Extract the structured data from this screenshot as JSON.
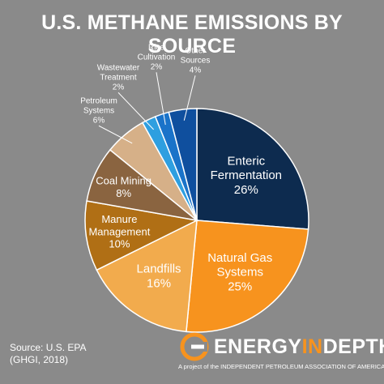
{
  "title": "U.S. METHANE EMISSIONS BY SOURCE",
  "chart_data": {
    "type": "pie",
    "title": "U.S. METHANE EMISSIONS BY SOURCE",
    "slices": [
      {
        "name": "Enteric Fermentation",
        "label_lines": [
          "Enteric",
          "Fermentation"
        ],
        "value": 26,
        "value_label": "26%",
        "color": "#0d2b4f"
      },
      {
        "name": "Natural Gas Systems",
        "label_lines": [
          "Natural Gas",
          "Systems"
        ],
        "value": 25,
        "value_label": "25%",
        "color": "#f7931e"
      },
      {
        "name": "Landfills",
        "label_lines": [
          "Landfills"
        ],
        "value": 16,
        "value_label": "16%",
        "color": "#f2ab4d"
      },
      {
        "name": "Manure Management",
        "label_lines": [
          "Manure",
          "Management"
        ],
        "value": 10,
        "value_label": "10%",
        "color": "#b06f15"
      },
      {
        "name": "Coal Mining",
        "label_lines": [
          "Coal Mining"
        ],
        "value": 8,
        "value_label": "8%",
        "color": "#8a6440"
      },
      {
        "name": "Petroleum Systems",
        "label_lines": [
          "Petroleum",
          "Systems"
        ],
        "value": 6,
        "value_label": "6%",
        "color": "#d6b088"
      },
      {
        "name": "Wastewater Treatment",
        "label_lines": [
          "Wastewater",
          "Treatment"
        ],
        "value": 2,
        "value_label": "2%",
        "color": "#2e9fe0"
      },
      {
        "name": "Rice Cultivation",
        "label_lines": [
          "Rice",
          "Cultivation"
        ],
        "value": 2,
        "value_label": "2%",
        "color": "#1a73c9"
      },
      {
        "name": "Other Sources",
        "label_lines": [
          "Other",
          "Sources"
        ],
        "value": 4,
        "value_label": "4%",
        "color": "#0f4f9e"
      }
    ]
  },
  "source": {
    "line1": "Source: U.S. EPA",
    "line2": "(GHGI, 2018)"
  },
  "brand": {
    "name_part1": "ENERGY",
    "name_part2": "IN",
    "name_part3": "DEPTH",
    "trademark": "®",
    "tagline": "A project of the INDEPENDENT PETROLEUM ASSOCIATION OF AMERICA",
    "color_dark": "#ffffff",
    "color_orange": "#f7931e"
  },
  "colors": {
    "background": "#8a8a8a",
    "text": "#ffffff"
  }
}
